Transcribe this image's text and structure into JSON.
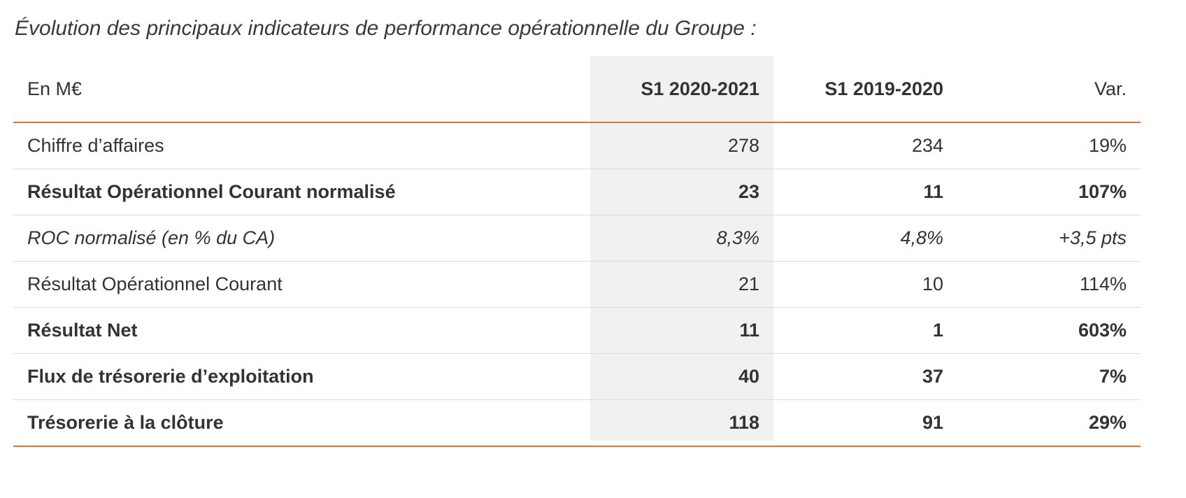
{
  "title": "Évolution des principaux indicateurs de performance opérationnelle du Groupe :",
  "header": {
    "label": "En M€",
    "col1": "S1 2020-2021",
    "col2": "S1 2019-2020",
    "col3": "Var."
  },
  "rows": [
    {
      "label": "Chiffre d’affaires",
      "v1": "278",
      "v2": "234",
      "var": "19%"
    },
    {
      "label": "Résultat Opérationnel Courant normalisé",
      "v1": "23",
      "v2": "11",
      "var": "107%"
    },
    {
      "label": "ROC normalisé (en % du CA)",
      "v1": "8,3%",
      "v2": "4,8%",
      "var": "+3,5 pts"
    },
    {
      "label": "Résultat Opérationnel Courant",
      "v1": "21",
      "v2": "10",
      "var": "114%"
    },
    {
      "label": "Résultat Net",
      "v1": "11",
      "v2": "1",
      "var": "603%"
    },
    {
      "label": "Flux de trésorerie d’exploitation",
      "v1": "40",
      "v2": "37",
      "var": "7%"
    },
    {
      "label": "Trésorerie à la clôture",
      "v1": "118",
      "v2": "91",
      "var": "29%"
    }
  ],
  "colors": {
    "accent": "#e2713a",
    "highlight_column": "#f1f1f1",
    "row_divider": "#dcdcdc"
  }
}
